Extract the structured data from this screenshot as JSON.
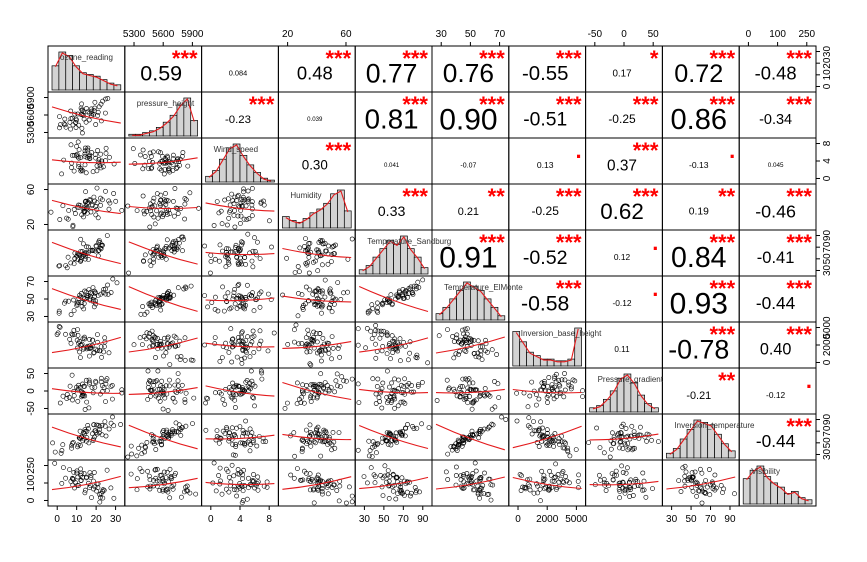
{
  "chart_data": {
    "type": "scatter-matrix",
    "variables": [
      {
        "name": "ozone_reading",
        "ticks": [
          "0",
          "10",
          "20",
          "30"
        ],
        "ticks_side": "left-bottom",
        "range": [
          0,
          38
        ]
      },
      {
        "name": "pressure_height",
        "ticks": [
          "5300",
          "5600",
          "5900"
        ],
        "range": [
          5250,
          5960
        ]
      },
      {
        "name": "Wind_speed",
        "ticks": [
          "0",
          "4",
          "8"
        ],
        "range": [
          0,
          11
        ]
      },
      {
        "name": "Humidity",
        "ticks": [
          "20",
          "60"
        ],
        "range": [
          10,
          95
        ]
      },
      {
        "name": "Temperature_Sandburg",
        "ticks": [
          "30",
          "50",
          "70",
          "90"
        ],
        "range": [
          25,
          95
        ]
      },
      {
        "name": "Temperature_ElMonte",
        "ticks": [
          "30",
          "50",
          "70"
        ],
        "range": [
          25,
          90
        ]
      },
      {
        "name": "Inversion_base_height",
        "ticks": [
          "0",
          "2000",
          "5000"
        ],
        "range": [
          0,
          5200
        ]
      },
      {
        "name": "Pressure_gradient",
        "ticks": [
          "-50",
          "0",
          "50"
        ],
        "range": [
          -75,
          90
        ]
      },
      {
        "name": "Inversion_temperature",
        "ticks": [
          "30",
          "50",
          "70",
          "90"
        ],
        "range": [
          25,
          95
        ]
      },
      {
        "name": "Visibility",
        "ticks": [
          "0",
          "100",
          "250"
        ],
        "range": [
          0,
          360
        ]
      }
    ],
    "correlations": [
      {
        "row": 1,
        "col": 2,
        "r": "0.59",
        "stars": "***"
      },
      {
        "row": 1,
        "col": 3,
        "r": "0.084",
        "stars": ""
      },
      {
        "row": 1,
        "col": 4,
        "r": "0.48",
        "stars": "***"
      },
      {
        "row": 1,
        "col": 5,
        "r": "0.77",
        "stars": "***"
      },
      {
        "row": 1,
        "col": 6,
        "r": "0.76",
        "stars": "***"
      },
      {
        "row": 1,
        "col": 7,
        "r": "-0.55",
        "stars": "***"
      },
      {
        "row": 1,
        "col": 8,
        "r": "0.17",
        "stars": "*"
      },
      {
        "row": 1,
        "col": 9,
        "r": "0.72",
        "stars": "***"
      },
      {
        "row": 1,
        "col": 10,
        "r": "-0.48",
        "stars": "***"
      },
      {
        "row": 2,
        "col": 3,
        "r": "-0.23",
        "stars": "***"
      },
      {
        "row": 2,
        "col": 4,
        "r": "0.039",
        "stars": ""
      },
      {
        "row": 2,
        "col": 5,
        "r": "0.81",
        "stars": "***"
      },
      {
        "row": 2,
        "col": 6,
        "r": "0.90",
        "stars": "***"
      },
      {
        "row": 2,
        "col": 7,
        "r": "-0.51",
        "stars": "***"
      },
      {
        "row": 2,
        "col": 8,
        "r": "-0.25",
        "stars": "***"
      },
      {
        "row": 2,
        "col": 9,
        "r": "0.86",
        "stars": "***"
      },
      {
        "row": 2,
        "col": 10,
        "r": "-0.34",
        "stars": "***"
      },
      {
        "row": 3,
        "col": 4,
        "r": "0.30",
        "stars": "***"
      },
      {
        "row": 3,
        "col": 5,
        "r": "0.041",
        "stars": ""
      },
      {
        "row": 3,
        "col": 6,
        "r": "-0.07",
        "stars": ""
      },
      {
        "row": 3,
        "col": 7,
        "r": "0.13",
        "stars": "."
      },
      {
        "row": 3,
        "col": 8,
        "r": "0.37",
        "stars": "***"
      },
      {
        "row": 3,
        "col": 9,
        "r": "-0.13",
        "stars": "."
      },
      {
        "row": 3,
        "col": 10,
        "r": "0.045",
        "stars": ""
      },
      {
        "row": 4,
        "col": 5,
        "r": "0.33",
        "stars": "***"
      },
      {
        "row": 4,
        "col": 6,
        "r": "0.21",
        "stars": "**"
      },
      {
        "row": 4,
        "col": 7,
        "r": "-0.25",
        "stars": "***"
      },
      {
        "row": 4,
        "col": 8,
        "r": "0.62",
        "stars": "***"
      },
      {
        "row": 4,
        "col": 9,
        "r": "0.19",
        "stars": "**"
      },
      {
        "row": 4,
        "col": 10,
        "r": "-0.46",
        "stars": "***"
      },
      {
        "row": 5,
        "col": 6,
        "r": "0.91",
        "stars": "***"
      },
      {
        "row": 5,
        "col": 7,
        "r": "-0.52",
        "stars": "***"
      },
      {
        "row": 5,
        "col": 8,
        "r": "0.12",
        "stars": "."
      },
      {
        "row": 5,
        "col": 9,
        "r": "0.84",
        "stars": "***"
      },
      {
        "row": 5,
        "col": 10,
        "r": "-0.41",
        "stars": "***"
      },
      {
        "row": 6,
        "col": 7,
        "r": "-0.58",
        "stars": "***"
      },
      {
        "row": 6,
        "col": 8,
        "r": "-0.12",
        "stars": "."
      },
      {
        "row": 6,
        "col": 9,
        "r": "0.93",
        "stars": "***"
      },
      {
        "row": 6,
        "col": 10,
        "r": "-0.44",
        "stars": "***"
      },
      {
        "row": 7,
        "col": 8,
        "r": "0.11",
        "stars": ""
      },
      {
        "row": 7,
        "col": 9,
        "r": "-0.78",
        "stars": "***"
      },
      {
        "row": 7,
        "col": 10,
        "r": "0.40",
        "stars": "***"
      },
      {
        "row": 8,
        "col": 9,
        "r": "-0.21",
        "stars": "**"
      },
      {
        "row": 8,
        "col": 10,
        "r": "-0.12",
        "stars": "."
      },
      {
        "row": 9,
        "col": 10,
        "r": "-0.44",
        "stars": "***"
      }
    ],
    "histograms": [
      {
        "var": 1,
        "counts": [
          14,
          22,
          20,
          14,
          10,
          9,
          8,
          6,
          4,
          3
        ]
      },
      {
        "var": 2,
        "counts": [
          1,
          1,
          2,
          3,
          5,
          8,
          12,
          18,
          22,
          9
        ]
      },
      {
        "var": 3,
        "counts": [
          3,
          6,
          12,
          18,
          20,
          14,
          9,
          5,
          2,
          1
        ]
      },
      {
        "var": 4,
        "counts": [
          6,
          4,
          3,
          5,
          8,
          10,
          13,
          18,
          20,
          9
        ]
      },
      {
        "var": 5,
        "counts": [
          2,
          4,
          8,
          12,
          16,
          14,
          18,
          12,
          8,
          3
        ]
      },
      {
        "var": 6,
        "counts": [
          3,
          6,
          10,
          14,
          18,
          16,
          14,
          10,
          6,
          2
        ]
      },
      {
        "var": 7,
        "counts": [
          20,
          14,
          8,
          6,
          4,
          4,
          3,
          3,
          4,
          22
        ]
      },
      {
        "var": 8,
        "counts": [
          2,
          3,
          6,
          10,
          16,
          18,
          14,
          8,
          4,
          2
        ]
      },
      {
        "var": 9,
        "counts": [
          2,
          4,
          8,
          12,
          16,
          15,
          14,
          10,
          6,
          3
        ]
      },
      {
        "var": 10,
        "counts": [
          12,
          16,
          18,
          13,
          10,
          8,
          5,
          6,
          3,
          2
        ]
      }
    ],
    "colors": {
      "smooth_line": "#e31a1c",
      "stars": "#ff0000",
      "points": "#000000",
      "hist_fill": "#d3d3d3"
    },
    "grid": false,
    "legend": "none"
  }
}
